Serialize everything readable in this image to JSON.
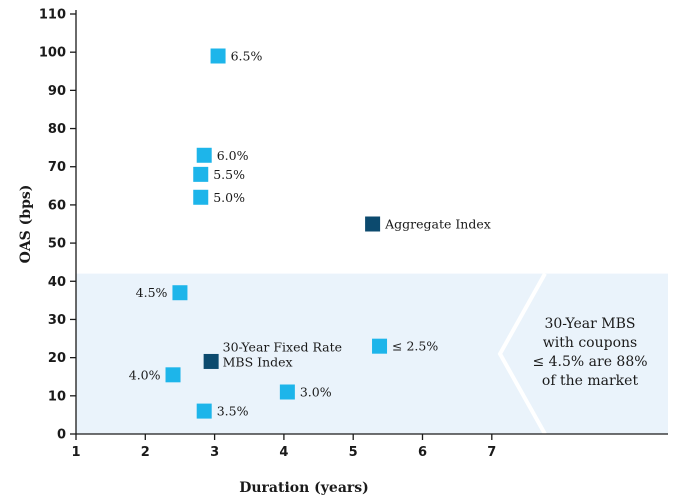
{
  "chart_data": {
    "type": "scatter",
    "title": "",
    "xlabel": "Duration (years)",
    "ylabel": "OAS (bps)",
    "xlim": [
      1,
      8.7
    ],
    "ylim": [
      0,
      110
    ],
    "x_ticks": [
      1,
      2,
      3,
      4,
      5,
      6,
      7
    ],
    "y_ticks": [
      0,
      10,
      20,
      30,
      40,
      50,
      60,
      70,
      80,
      90,
      100,
      110
    ],
    "grid": false,
    "colors": {
      "coupon": "#1db5ea",
      "index": "#0c4a6e",
      "shade": "#eaf3fb"
    },
    "points": [
      {
        "label": "6.5%",
        "x": 3.05,
        "y": 99,
        "kind": "coupon"
      },
      {
        "label": "6.0%",
        "x": 2.85,
        "y": 73,
        "kind": "coupon"
      },
      {
        "label": "5.5%",
        "x": 2.8,
        "y": 68,
        "kind": "coupon"
      },
      {
        "label": "5.0%",
        "x": 2.8,
        "y": 62,
        "kind": "coupon"
      },
      {
        "label": "Aggregate Index",
        "x": 5.28,
        "y": 55,
        "kind": "index"
      },
      {
        "label": "4.5%",
        "x": 2.5,
        "y": 37,
        "kind": "coupon"
      },
      {
        "label": "≤ 2.5%",
        "x": 5.38,
        "y": 23,
        "kind": "coupon"
      },
      {
        "label": "30-Year Fixed Rate MBS Index",
        "x": 2.95,
        "y": 19,
        "kind": "index"
      },
      {
        "label": "4.0%",
        "x": 2.4,
        "y": 15.5,
        "kind": "coupon"
      },
      {
        "label": "3.0%",
        "x": 4.05,
        "y": 11,
        "kind": "coupon"
      },
      {
        "label": "3.5%",
        "x": 2.85,
        "y": 6,
        "kind": "coupon"
      }
    ],
    "annotation": {
      "lines": [
        "30-Year MBS",
        "with coupons",
        "≤ 4.5% are 88%",
        "of the market"
      ]
    }
  }
}
